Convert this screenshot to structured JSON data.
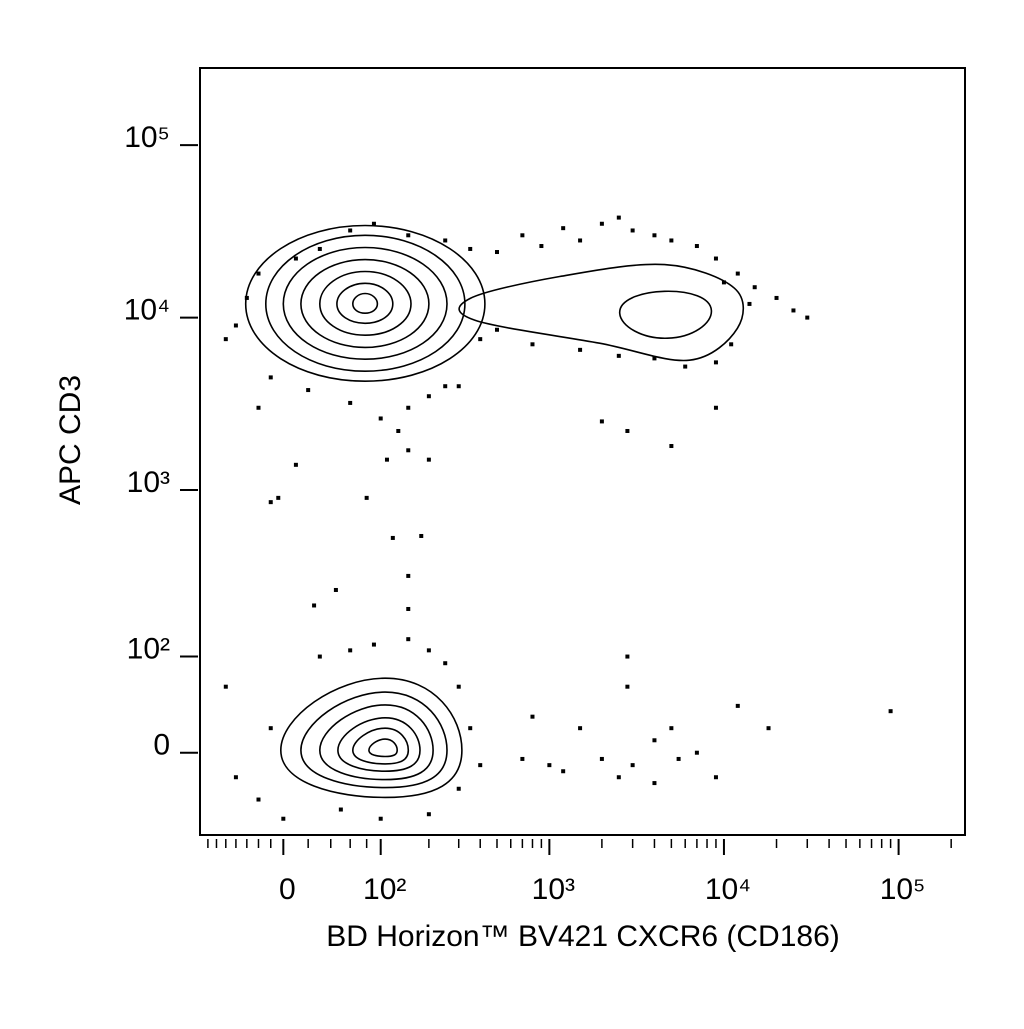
{
  "chart_data": {
    "type": "contour",
    "xlabel": "BD Horizon™ BV421 CXCR6 (CD186)",
    "ylabel": "APC CD3",
    "xscale": "biexponential",
    "yscale": "biexponential",
    "xlim": [
      -80,
      240000
    ],
    "ylim": [
      -80,
      280000
    ],
    "xticks": [
      0,
      {
        "value": 100,
        "label": "10²"
      },
      {
        "value": 1000,
        "label": "10³"
      },
      {
        "value": 10000,
        "label": "10⁴"
      },
      {
        "value": 100000,
        "label": "10⁵"
      }
    ],
    "yticks": [
      0,
      {
        "value": 100,
        "label": "10²"
      },
      {
        "value": 1000,
        "label": "10³"
      },
      {
        "value": 10000,
        "label": "10⁴"
      },
      {
        "value": 100000,
        "label": "10⁵"
      }
    ],
    "xminorticks": [
      -70,
      -60,
      -50,
      -40,
      -30,
      -20,
      -10,
      20,
      40,
      60,
      80,
      200,
      300,
      400,
      500,
      600,
      700,
      800,
      900,
      2000,
      3000,
      4000,
      5000,
      6000,
      7000,
      8000,
      9000,
      20000,
      30000,
      40000,
      50000,
      60000,
      70000,
      80000,
      90000,
      200000
    ],
    "color": "#000000",
    "contours": [
      {
        "x": [
          426,
          78,
          -31,
          78
        ],
        "y": [
          12000,
          34200,
          12000,
          4280
        ]
      },
      {
        "x": [
          326,
          78,
          -14,
          78
        ],
        "y": [
          12000,
          30000,
          12000,
          4890
        ]
      },
      {
        "x": [
          256,
          78,
          0,
          78
        ],
        "y": [
          12000,
          25500,
          12000,
          5740
        ]
      },
      {
        "x": [
          200,
          78,
          14,
          78
        ],
        "y": [
          12000,
          21700,
          12000,
          6720
        ]
      },
      {
        "x": [
          156,
          78,
          30,
          78
        ],
        "y": [
          12000,
          18500,
          12000,
          7900
        ]
      },
      {
        "x": [
          120,
          78,
          46,
          78
        ],
        "y": [
          12000,
          15800,
          12000,
          9270
        ]
      },
      {
        "x": [
          95,
          78,
          63,
          78
        ],
        "y": [
          12000,
          13800,
          12000,
          10600
        ]
      },
      {
        "x": [
          313,
          107,
          -2,
          107
        ],
        "y": [
          2,
          70,
          2,
          -38
        ]
      },
      {
        "x": [
          256,
          107,
          14,
          107
        ],
        "y": [
          2,
          54,
          2,
          -29
        ]
      },
      {
        "x": [
          212,
          107,
          30,
          107
        ],
        "y": [
          2,
          41,
          2,
          -22
        ]
      },
      {
        "x": [
          177,
          107,
          47,
          107
        ],
        "y": [
          2,
          29,
          2,
          -15
        ]
      },
      {
        "x": [
          150,
          107,
          63,
          107
        ],
        "y": [
          2,
          20,
          2,
          -9
        ]
      },
      {
        "x": [
          128,
          107,
          83,
          107
        ],
        "y": [
          2,
          11,
          2,
          -3
        ]
      },
      {
        "x": [
          349,
          1146,
          4570,
          11480,
          11940,
          6350,
          1940,
          373
        ],
        "y": [
          12900,
          17300,
          20300,
          14800,
          8670,
          5660,
          7100,
          9650
        ]
      },
      {
        "x": [
          2530,
          4570,
          8480,
          4750
        ],
        "y": [
          10600,
          14200,
          11000,
          7590
        ]
      }
    ],
    "points": {
      "x": [
        -40,
        -50,
        -30,
        -20,
        10,
        30,
        60,
        90,
        150,
        250,
        350,
        500,
        700,
        900,
        1200,
        1500,
        2000,
        2500,
        3000,
        4000,
        5000,
        7000,
        9000,
        12000,
        15000,
        20000,
        25000,
        30000,
        14000,
        10000,
        11000,
        9000,
        6000,
        4000,
        2500,
        1500,
        800,
        500,
        400,
        300,
        200,
        150,
        100,
        60,
        20,
        -20,
        -10,
        250,
        130,
        150,
        110,
        80,
        -10,
        200,
        2000,
        2800,
        5000,
        9000,
        120,
        180,
        150,
        150,
        25,
        45,
        10,
        -4,
        -50,
        -40,
        -20,
        -10,
        30,
        60,
        90,
        150,
        200,
        250,
        300,
        350,
        400,
        300,
        200,
        100,
        50,
        0,
        800,
        1000,
        1500,
        2000,
        2800,
        2800,
        3000,
        4000,
        5000,
        5500,
        7000,
        9000,
        12000,
        18000,
        90000,
        4000,
        2500,
        1200,
        700
      ],
      "y": [
        9000,
        7500,
        13000,
        18000,
        22000,
        25000,
        32000,
        35000,
        30000,
        28000,
        25000,
        24000,
        30000,
        26000,
        33000,
        28000,
        35000,
        38000,
        32000,
        30000,
        28000,
        26000,
        22000,
        18000,
        15000,
        13000,
        11000,
        10000,
        12000,
        16000,
        7000,
        5500,
        5200,
        5800,
        6000,
        6500,
        7000,
        8500,
        7500,
        4000,
        3500,
        3000,
        2600,
        3200,
        3800,
        3000,
        4500,
        4000,
        2200,
        1700,
        1500,
        900,
        850,
        1500,
        2500,
        2200,
        1800,
        3000,
        526,
        540,
        315,
        200,
        210,
        260,
        1400,
        900,
        60,
        -20,
        -40,
        20,
        100,
        110,
        120,
        130,
        110,
        90,
        60,
        20,
        -10,
        -30,
        -55,
        -60,
        -50,
        -60,
        30,
        -10,
        20,
        -5,
        100,
        60,
        -10,
        10,
        20,
        -5,
        0,
        -20,
        40,
        20,
        35,
        -25,
        -20,
        -15,
        -5
      ]
    }
  }
}
